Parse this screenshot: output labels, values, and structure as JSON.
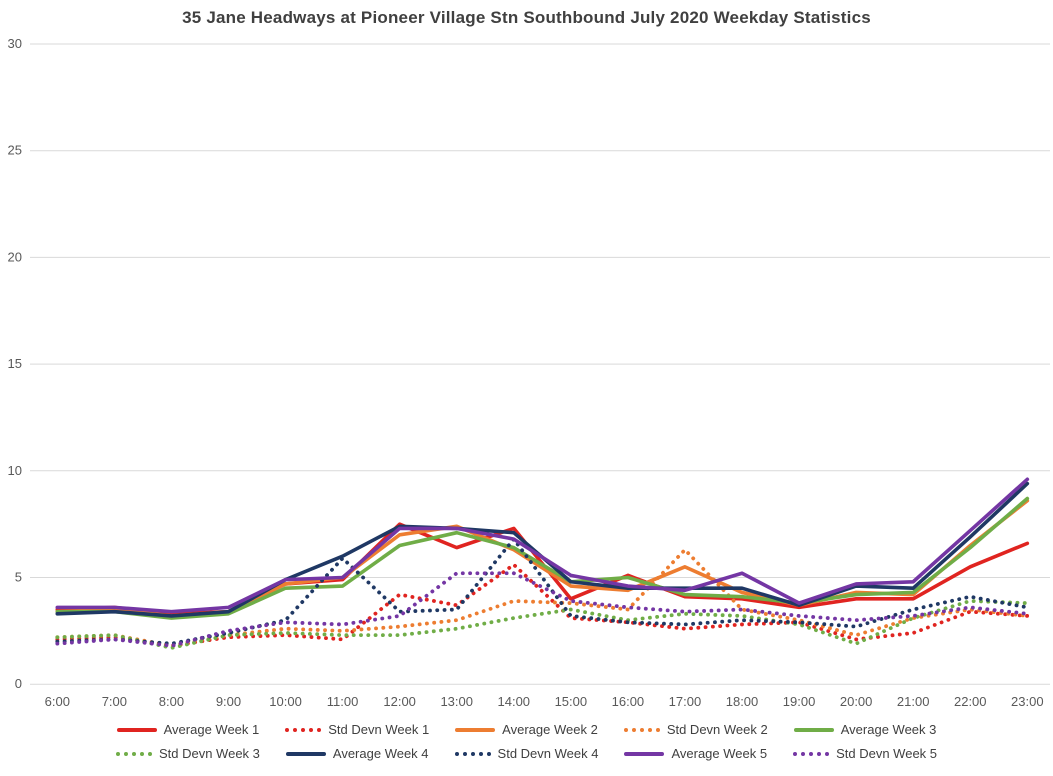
{
  "chart_data": {
    "type": "line",
    "title": "35 Jane Headways at Pioneer Village Stn Southbound July 2020 Weekday Statistics",
    "xlabel": "",
    "ylabel": "",
    "ylim": [
      0,
      30
    ],
    "yticks": [
      0,
      5,
      10,
      15,
      20,
      25,
      30
    ],
    "grid": true,
    "legend_position": "bottom",
    "axis_text_color": "#595959",
    "grid_color": "#d9d9d9",
    "categories": [
      "6:00",
      "7:00",
      "8:00",
      "9:00",
      "10:00",
      "11:00",
      "12:00",
      "13:00",
      "14:00",
      "15:00",
      "16:00",
      "17:00",
      "18:00",
      "19:00",
      "20:00",
      "21:00",
      "22:00",
      "23:00"
    ],
    "series": [
      {
        "name": "Average Week 1",
        "color": "#e02420",
        "style": "solid",
        "values": [
          3.5,
          3.6,
          3.3,
          3.4,
          4.7,
          4.9,
          7.5,
          6.4,
          7.3,
          4.0,
          5.1,
          4.1,
          4.0,
          3.6,
          4.0,
          4.0,
          5.5,
          6.6
        ]
      },
      {
        "name": "Std Devn Week 1",
        "color": "#e02420",
        "style": "dotted",
        "values": [
          2.1,
          2.2,
          1.8,
          2.2,
          2.3,
          2.1,
          4.2,
          3.7,
          5.6,
          3.1,
          2.9,
          2.6,
          2.8,
          2.9,
          2.1,
          2.4,
          3.4,
          3.2
        ]
      },
      {
        "name": "Average Week 2",
        "color": "#ed7d31",
        "style": "solid",
        "values": [
          3.4,
          3.5,
          3.2,
          3.4,
          4.7,
          5.0,
          7.0,
          7.4,
          6.3,
          4.6,
          4.4,
          5.5,
          4.3,
          3.7,
          4.3,
          4.2,
          6.5,
          8.6
        ]
      },
      {
        "name": "Std Devn Week 2",
        "color": "#ed7d31",
        "style": "dotted",
        "values": [
          2.2,
          2.3,
          1.8,
          2.3,
          2.6,
          2.5,
          2.7,
          3.0,
          3.9,
          3.8,
          3.5,
          6.3,
          3.5,
          3.0,
          2.3,
          3.1,
          3.5,
          3.2
        ]
      },
      {
        "name": "Average Week 3",
        "color": "#70ad47",
        "style": "solid",
        "values": [
          3.4,
          3.4,
          3.1,
          3.3,
          4.5,
          4.6,
          6.5,
          7.1,
          6.4,
          4.8,
          5.0,
          4.2,
          4.1,
          3.8,
          4.2,
          4.3,
          6.4,
          8.7
        ]
      },
      {
        "name": "Std Devn Week 3",
        "color": "#70ad47",
        "style": "dotted",
        "values": [
          2.2,
          2.3,
          1.7,
          2.3,
          2.4,
          2.3,
          2.3,
          2.6,
          3.1,
          3.5,
          3.0,
          3.3,
          3.2,
          2.8,
          1.9,
          3.1,
          3.9,
          3.8
        ]
      },
      {
        "name": "Average Week 4",
        "color": "#1f3864",
        "style": "solid",
        "values": [
          3.3,
          3.4,
          3.2,
          3.4,
          4.9,
          6.0,
          7.4,
          7.3,
          7.1,
          4.8,
          4.5,
          4.5,
          4.5,
          3.7,
          4.6,
          4.5,
          6.9,
          9.4
        ]
      },
      {
        "name": "Std Devn Week 4",
        "color": "#1f3864",
        "style": "dotted",
        "values": [
          2.0,
          2.1,
          1.9,
          2.4,
          3.0,
          5.9,
          3.4,
          3.5,
          6.8,
          3.2,
          2.9,
          2.8,
          3.0,
          2.9,
          2.7,
          3.5,
          4.1,
          3.6
        ]
      },
      {
        "name": "Average Week 5",
        "color": "#7436a4",
        "style": "solid",
        "values": [
          3.6,
          3.6,
          3.4,
          3.6,
          4.9,
          5.0,
          7.3,
          7.3,
          6.8,
          5.1,
          4.6,
          4.4,
          5.2,
          3.8,
          4.7,
          4.8,
          7.2,
          9.6
        ]
      },
      {
        "name": "Std Devn Week 5",
        "color": "#7436a4",
        "style": "dotted",
        "values": [
          1.9,
          2.1,
          1.8,
          2.5,
          2.9,
          2.8,
          3.2,
          5.2,
          5.2,
          3.9,
          3.6,
          3.4,
          3.5,
          3.2,
          3.0,
          3.2,
          3.6,
          3.3
        ]
      }
    ],
    "legend_rows": [
      [
        0,
        1,
        2,
        3,
        4
      ],
      [
        5,
        6,
        7,
        8,
        9
      ]
    ]
  }
}
